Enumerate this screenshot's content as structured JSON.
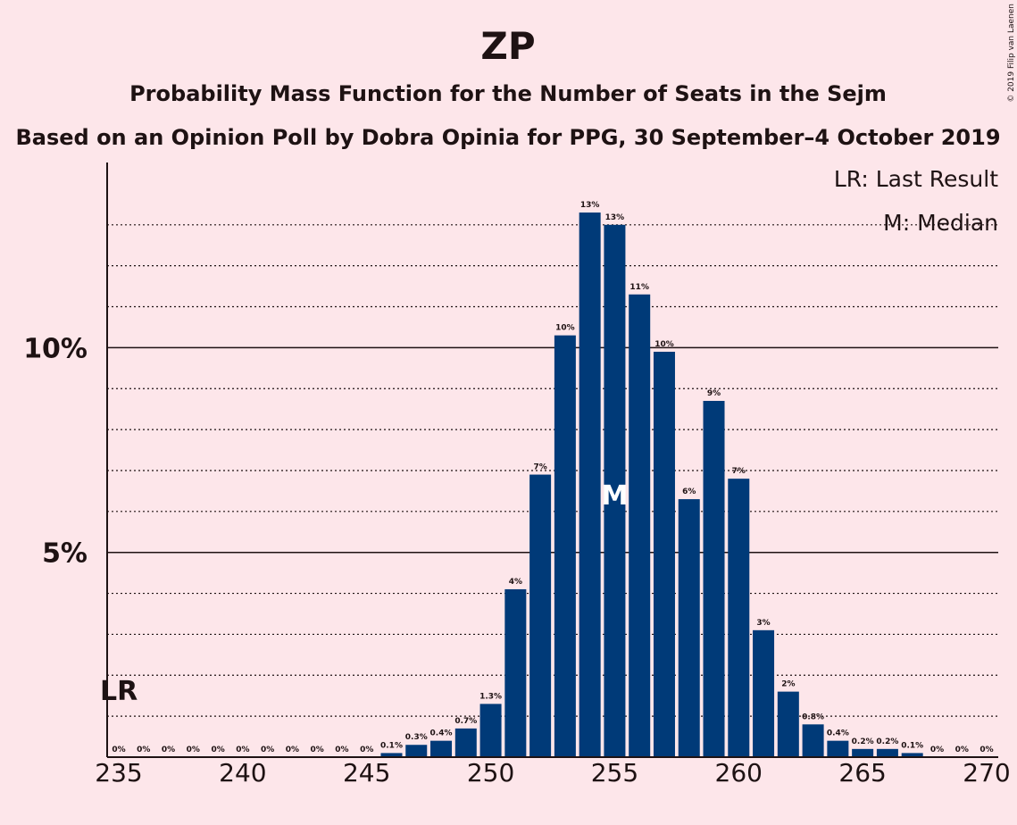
{
  "chart_data": {
    "type": "bar",
    "title": "ZP",
    "subtitle": "Probability Mass Function for the Number of Seats in the Sejm",
    "subtitle2": "Based on an Opinion Poll by Dobra Opinia for PPG, 30 September–4 October 2019",
    "credit": "© 2019 Filip van Laenen",
    "x": [
      235,
      236,
      237,
      238,
      239,
      240,
      241,
      242,
      243,
      244,
      245,
      246,
      247,
      248,
      249,
      250,
      251,
      252,
      253,
      254,
      255,
      256,
      257,
      258,
      259,
      260,
      261,
      262,
      263,
      264,
      265,
      266,
      267,
      268,
      269,
      270
    ],
    "values": [
      0,
      0,
      0,
      0,
      0,
      0,
      0,
      0,
      0,
      0,
      0,
      0.1,
      0.3,
      0.4,
      0.7,
      1.3,
      4.1,
      6.9,
      10.3,
      13.3,
      13.0,
      11.3,
      9.9,
      6.3,
      8.7,
      6.8,
      3.1,
      1.6,
      0.8,
      0.4,
      0.2,
      0.2,
      0.1,
      0,
      0,
      0
    ],
    "labels": [
      "0%",
      "0%",
      "0%",
      "0%",
      "0%",
      "0%",
      "0%",
      "0%",
      "0%",
      "0%",
      "0%",
      "0.1%",
      "0.3%",
      "0.4%",
      "0.7%",
      "1.3%",
      "4%",
      "7%",
      "10%",
      "13%",
      "13%",
      "11%",
      "10%",
      "6%",
      "9%",
      "7%",
      "3%",
      "2%",
      "0.8%",
      "0.4%",
      "0.2%",
      "0.2%",
      "0.1%",
      "0%",
      "0%",
      "0%"
    ],
    "xticks": [
      235,
      240,
      245,
      250,
      255,
      260,
      265,
      270
    ],
    "yticks": [
      {
        "value": 5,
        "label": "5%"
      },
      {
        "value": 10,
        "label": "10%"
      }
    ],
    "ylim": [
      0,
      14.5
    ],
    "median": 255,
    "median_label": "M",
    "last_result": 235,
    "last_result_label": "LR",
    "legend": [
      "LR: Last Result",
      "M: Median"
    ],
    "bar_color": "#003a78",
    "background": "#fde6ea"
  }
}
